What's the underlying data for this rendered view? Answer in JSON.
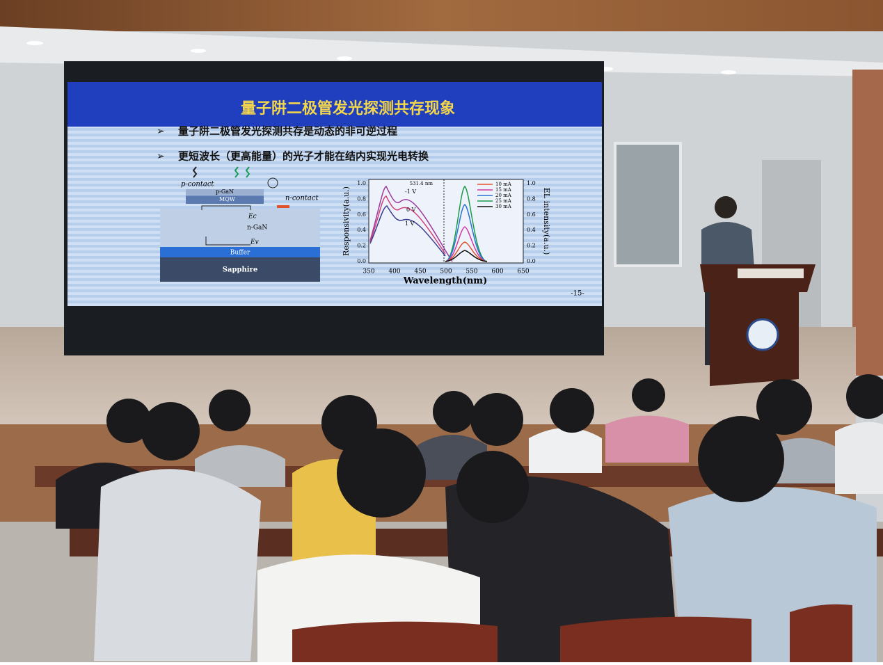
{
  "slide": {
    "title": "量子阱二极管发光探测共存现象",
    "bullets": [
      "量子阱二极管发光探测共存是动态的非可逆过程",
      "更短波长（更高能量）的光子才能在结内实现光电转换"
    ],
    "diagram": {
      "p_contact": "p-contact",
      "p_gan": "p-GaN",
      "mqw": "MQW",
      "n_contact": "n-contact",
      "ec": "Ec",
      "n_gan": "n-GaN",
      "ev": "Ev",
      "buffer": "Buffer",
      "sapphire": "Sapphire"
    },
    "plot": {
      "y_label": "Responsivity(a.u.)",
      "x_label": "Wavelength(nm)",
      "y2_label": "EL intensity(a.u.)",
      "xticks": [
        "350",
        "400",
        "450",
        "500",
        "550",
        "600",
        "650"
      ],
      "yticks": [
        "0.0",
        "0.2",
        "0.4",
        "0.6",
        "0.8",
        "1.0"
      ],
      "y2ticks": [
        "0.0",
        "0.2",
        "0.4",
        "0.6",
        "0.8",
        "1.0"
      ],
      "peak": "531.4 nm",
      "bias": [
        "-1 V",
        "0 V",
        "1 V"
      ],
      "legend": [
        "10 mA",
        "15 mA",
        "20 mA",
        "25 mA",
        "30 mA"
      ]
    },
    "page": "-15-"
  }
}
